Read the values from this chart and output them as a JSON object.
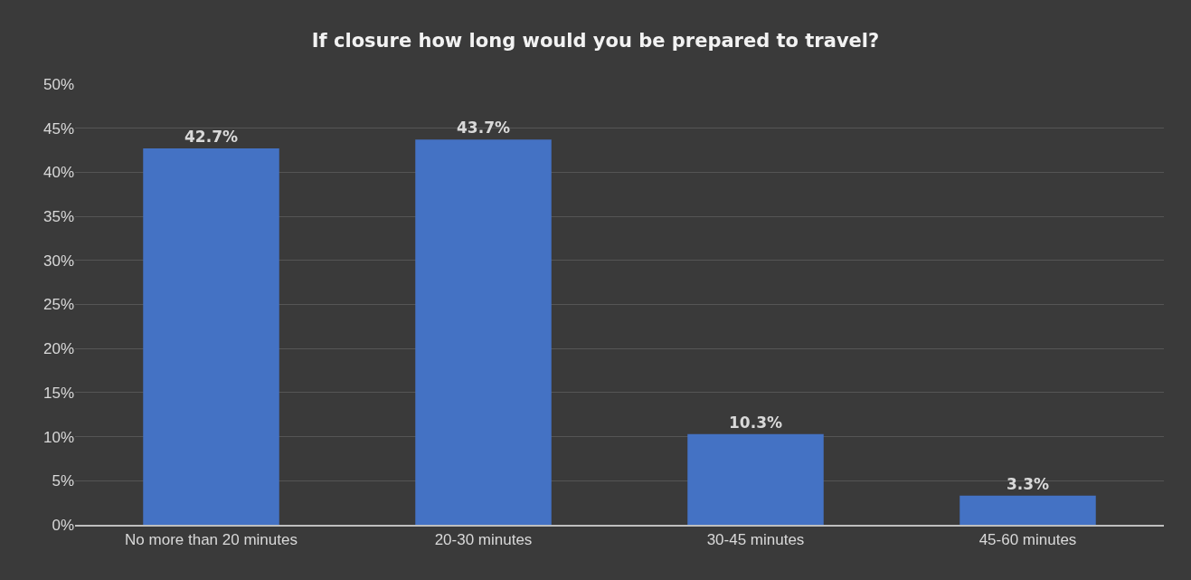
{
  "chart_data": {
    "type": "bar",
    "title": "If closure how long would you be prepared to travel?",
    "categories": [
      "No more than 20 minutes",
      "20-30 minutes",
      "30-45 minutes",
      "45-60 minutes"
    ],
    "values": [
      42.7,
      43.7,
      10.3,
      3.3
    ],
    "value_labels": [
      "42.7%",
      "43.7%",
      "10.3%",
      "3.3%"
    ],
    "color": "#4472c4",
    "ylim": [
      0,
      50
    ],
    "yticks": [
      {
        "value": 0,
        "label": "0%"
      },
      {
        "value": 5,
        "label": "5%"
      },
      {
        "value": 10,
        "label": "10%"
      },
      {
        "value": 15,
        "label": "15%"
      },
      {
        "value": 20,
        "label": "20%"
      },
      {
        "value": 25,
        "label": "25%"
      },
      {
        "value": 30,
        "label": "30%"
      },
      {
        "value": 35,
        "label": "35%"
      },
      {
        "value": 40,
        "label": "40%"
      },
      {
        "value": 45,
        "label": "45%"
      },
      {
        "value": 50,
        "label": "50%"
      }
    ],
    "grid": "y",
    "legend": false
  }
}
